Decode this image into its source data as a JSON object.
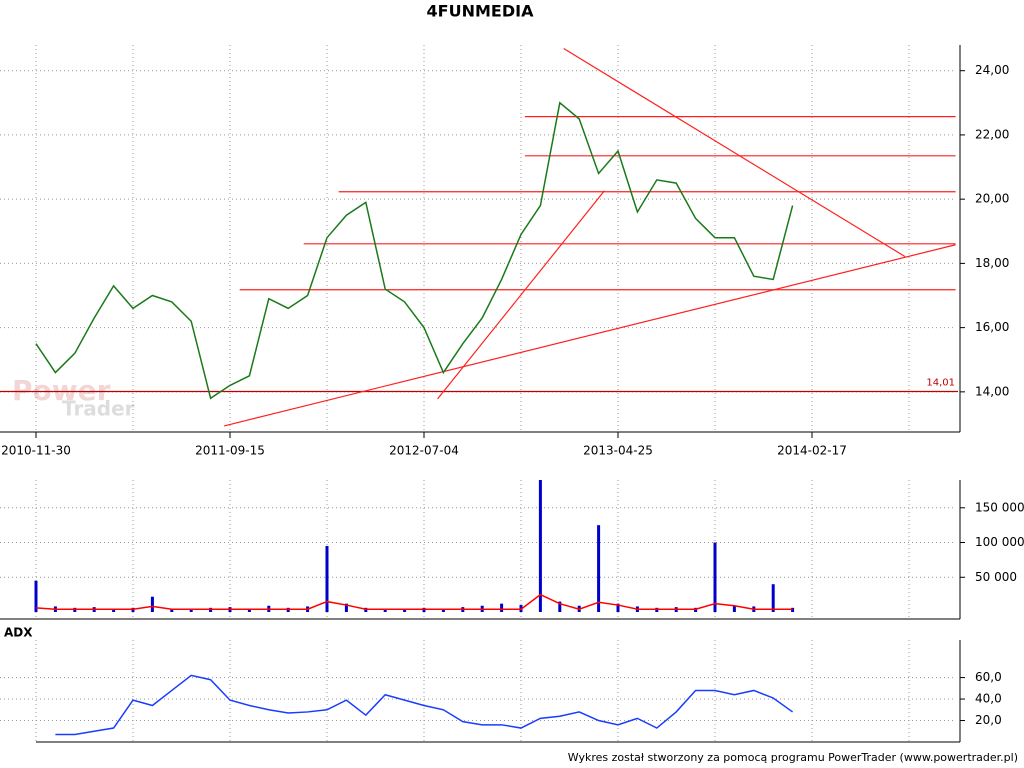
{
  "chart_data": [
    {
      "type": "line",
      "title": "4FUNMEDIA",
      "categories": [
        "2010-11-30",
        null,
        null,
        null,
        null,
        null,
        null,
        null,
        null,
        null,
        "2011-09-15",
        null,
        null,
        null,
        null,
        null,
        null,
        null,
        null,
        null,
        "2012-07-04",
        null,
        null,
        null,
        null,
        null,
        null,
        null,
        null,
        null,
        "2013-04-25",
        null,
        null,
        null,
        null,
        null,
        null,
        null,
        null,
        null,
        "2014-02-17",
        null,
        null,
        null,
        null,
        null,
        null,
        null
      ],
      "series": [
        {
          "color": "#1a7a1a",
          "values": [
            15.5,
            14.6,
            15.2,
            16.3,
            17.3,
            16.6,
            17.0,
            16.8,
            16.2,
            13.8,
            14.2,
            14.5,
            16.9,
            16.6,
            17.0,
            18.8,
            19.5,
            19.9,
            17.2,
            16.8,
            16.0,
            14.6,
            15.5,
            16.3,
            17.5,
            18.9,
            19.8,
            23.0,
            22.5,
            20.8,
            21.5,
            19.6,
            20.6,
            20.5,
            19.4,
            18.8,
            18.8,
            17.6,
            17.5,
            19.8,
            null,
            null,
            null,
            null,
            null,
            null,
            null,
            null
          ]
        }
      ],
      "ylim": [
        12.75,
        24.8
      ],
      "yticks": [
        {
          "value": 14,
          "label": "14,00"
        },
        {
          "value": 16,
          "label": "16,00"
        },
        {
          "value": 18,
          "label": "18,00"
        },
        {
          "value": 20,
          "label": "20,00"
        },
        {
          "value": 22,
          "label": "22,00"
        },
        {
          "value": 24,
          "label": "24,00"
        }
      ],
      "grid": true,
      "reference_line": {
        "value": 14.01,
        "label": "14,01",
        "color": "#c00000"
      },
      "trendlines": {
        "color": "#ff2020",
        "lines": [
          [
            [
              10.5,
              17.18
            ],
            [
              47.4,
              17.18
            ]
          ],
          [
            [
              13.8,
              18.61
            ],
            [
              47.4,
              18.61
            ]
          ],
          [
            [
              15.6,
              20.23
            ],
            [
              47.4,
              20.23
            ]
          ],
          [
            [
              25.2,
              21.35
            ],
            [
              47.4,
              21.35
            ]
          ],
          [
            [
              25.2,
              22.57
            ],
            [
              47.4,
              22.57
            ]
          ],
          [
            [
              9.7,
              12.94
            ],
            [
              47.4,
              18.58
            ]
          ],
          [
            [
              20.7,
              13.78
            ],
            [
              29.3,
              20.26
            ]
          ],
          [
            [
              27.2,
              24.69
            ],
            [
              44.8,
              18.21
            ]
          ]
        ]
      }
    },
    {
      "type": "bar",
      "series": [
        {
          "color": "#0000cc",
          "values": [
            45000,
            8000,
            6000,
            7000,
            5000,
            6000,
            22000,
            5000,
            4000,
            6000,
            7000,
            5000,
            9000,
            6000,
            8000,
            95000,
            12000,
            6000,
            5000,
            4000,
            6000,
            5000,
            7000,
            9000,
            12000,
            10000,
            190000,
            15000,
            9000,
            125000,
            12000,
            8000,
            6000,
            7000,
            6000,
            100000,
            9000,
            8000,
            40000,
            6000,
            null,
            null,
            null,
            null,
            null,
            null,
            null,
            null
          ]
        },
        {
          "type": "line",
          "color": "#ff0000",
          "values": [
            6000,
            4000,
            4000,
            4000,
            4000,
            4000,
            8000,
            4000,
            4000,
            4000,
            4000,
            4000,
            4000,
            4000,
            4000,
            15000,
            10000,
            4000,
            4000,
            4000,
            4000,
            4000,
            4000,
            4000,
            4000,
            4000,
            25000,
            12000,
            4000,
            14000,
            10000,
            4000,
            4000,
            4000,
            4000,
            12000,
            9000,
            4000,
            4000,
            4000,
            null,
            null,
            null,
            null,
            null,
            null,
            null,
            null
          ]
        }
      ],
      "ylim": [
        0,
        190000
      ],
      "yticks": [
        {
          "value": 50000,
          "label": "50 000"
        },
        {
          "value": 100000,
          "label": "100 000"
        },
        {
          "value": 150000,
          "label": "150 000"
        }
      ],
      "grid": true
    },
    {
      "type": "line",
      "title": "ADX",
      "series": [
        {
          "color": "#1a3cff",
          "values": [
            null,
            7,
            7,
            10,
            13,
            39,
            34,
            48,
            62,
            58,
            39,
            34,
            30,
            27,
            28,
            30,
            39,
            25,
            44,
            39,
            34,
            30,
            19,
            16,
            16,
            13,
            22,
            24,
            28,
            20,
            16,
            22,
            13,
            28,
            48,
            48,
            44,
            48,
            41,
            28,
            null,
            null,
            null,
            null,
            null,
            null,
            null,
            null
          ]
        }
      ],
      "ylim": [
        0,
        95
      ],
      "yticks": [
        {
          "value": 20,
          "label": "20,0"
        },
        {
          "value": 40,
          "label": "40,0"
        },
        {
          "value": 60,
          "label": "60,0"
        }
      ],
      "grid": true
    }
  ],
  "watermark": [
    "Power",
    "Trader"
  ],
  "footer": "Wykres został stworzony za pomocą programu PowerTrader (www.powertrader.pl)"
}
